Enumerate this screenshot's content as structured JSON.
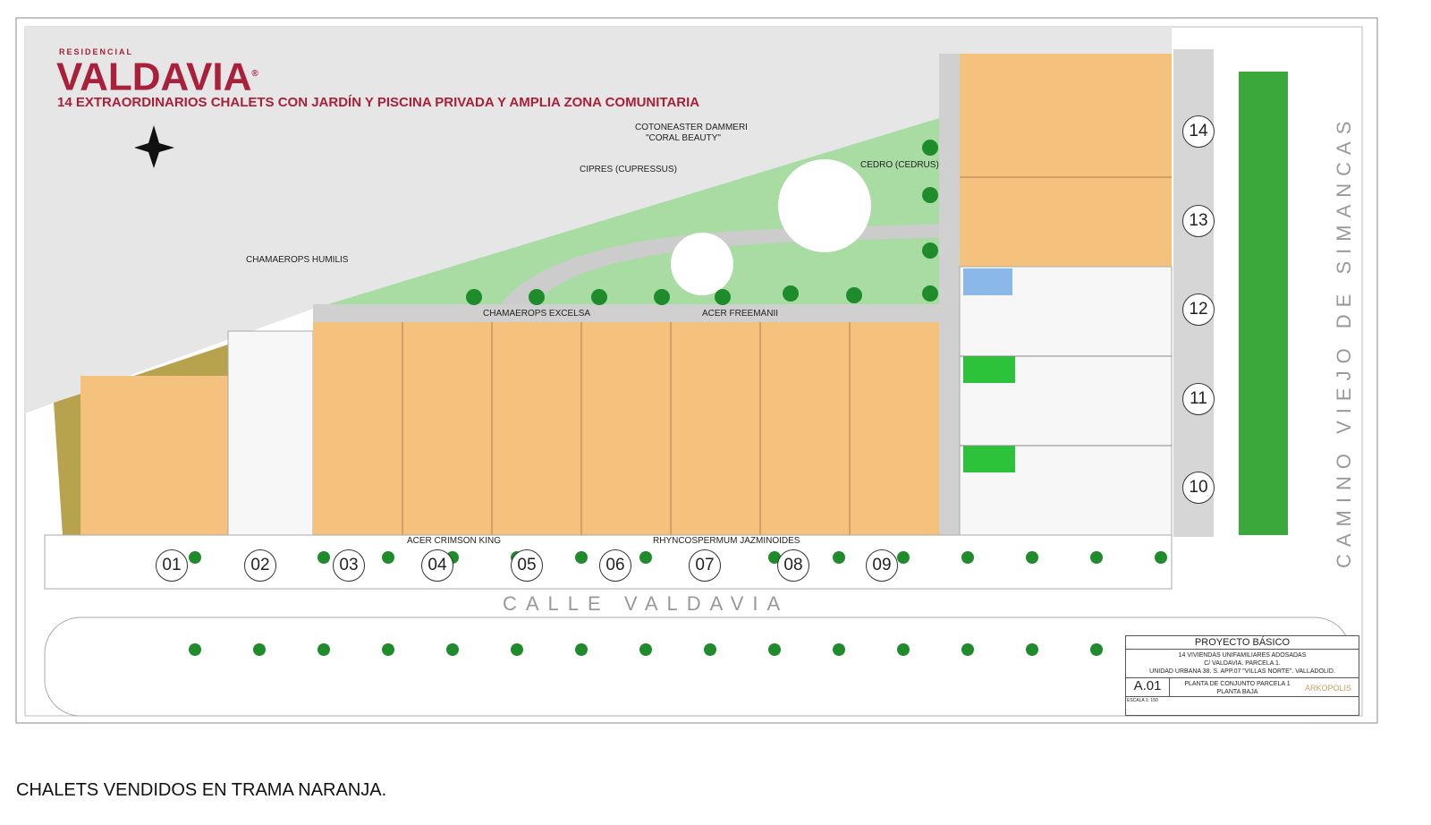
{
  "brand": {
    "pre": "RESIDENCIAL",
    "name": "VALDAVIA",
    "reg": "®",
    "tagline": "14 EXTRAORDINARIOS CHALETS CON JARDÍN Y PISCINA PRIVADA Y AMPLIA ZONA COMUNITARIA",
    "color": "#a8203a"
  },
  "plants": [
    "COTONEASTER DAMMERI",
    "\"CORAL BEAUTY\"",
    "CIPRES  (CUPRESSUS)",
    "CEDRO  (CEDRUS)",
    "CHAMAEROPS HUMILIS",
    "CHAMAEROPS EXCELSA",
    "ACER FREEMANII",
    "ACER CRIMSON KING",
    "RHYNCOSPERMUM JAZMINOIDES"
  ],
  "streets": {
    "main": "CALLE   VALDAVIA",
    "side": "CAMINO  VIEJO  DE  SIMANCAS"
  },
  "units": [
    {
      "n": "01",
      "sold": true
    },
    {
      "n": "02",
      "sold": false
    },
    {
      "n": "03",
      "sold": true
    },
    {
      "n": "04",
      "sold": true
    },
    {
      "n": "05",
      "sold": true
    },
    {
      "n": "06",
      "sold": true
    },
    {
      "n": "07",
      "sold": true
    },
    {
      "n": "08",
      "sold": true
    },
    {
      "n": "09",
      "sold": true
    },
    {
      "n": "10",
      "sold": false
    },
    {
      "n": "11",
      "sold": false
    },
    {
      "n": "12",
      "sold": false
    },
    {
      "n": "13",
      "sold": true
    },
    {
      "n": "14",
      "sold": true
    }
  ],
  "colors": {
    "sold": "#f5c27e",
    "garden": "#8fd18a",
    "sky": "#e6e6e6"
  },
  "titleblock": {
    "project": "PROYECTO BÁSICO",
    "l1": "14 VIVIENDAS UNIFAMILIARES ADOSADAS",
    "l2": "C/ VALDAVIA. PARCELA 1.",
    "l3": "UNIDAD URBANA 38. S. APP.07 \"VILLAS NORTE\". VALLADOLID.",
    "sheet": "A.01",
    "sheet_title1": "PLANTA DE CONJUNTO PARCELA 1",
    "sheet_title2": "PLANTA BAJA",
    "escala_label": "ESCALA",
    "escala": "1: 150",
    "logo": "ARKOPOLIS"
  },
  "caption": "CHALETS VENDIDOS EN TRAMA NARANJA."
}
